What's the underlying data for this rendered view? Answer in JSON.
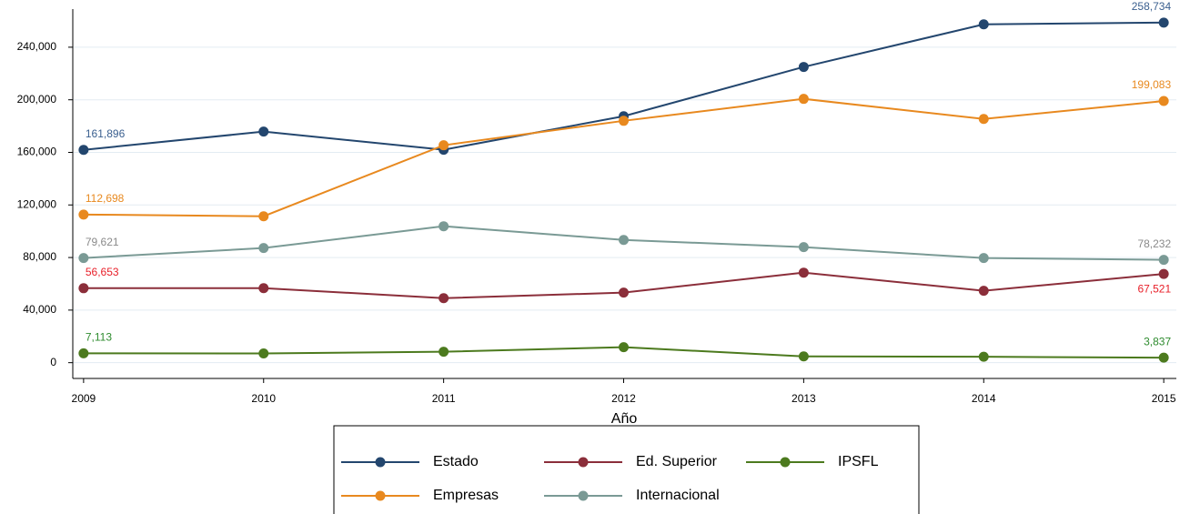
{
  "chart_data": {
    "type": "line",
    "x_label": "Año",
    "x": [
      2009,
      2010,
      2011,
      2012,
      2013,
      2014,
      2015
    ],
    "xlim": [
      2008.94,
      2015.07
    ],
    "xticks": [
      2009,
      2010,
      2011,
      2012,
      2013,
      2014,
      2015
    ],
    "ylim": [
      -12000,
      269000
    ],
    "yticks": [
      0,
      {
        "value": 40000,
        "label": "40,000"
      },
      {
        "value": 80000,
        "label": "80,000"
      },
      {
        "value": 120000,
        "label": "120,000"
      },
      {
        "value": 160000,
        "label": "160,000"
      },
      {
        "value": 200000,
        "label": "200,000"
      },
      {
        "value": 240000,
        "label": "240,000"
      }
    ],
    "grid": true,
    "legend": "bottom",
    "series": [
      {
        "name": "Estado",
        "color": "#23466e",
        "label_color": "#3a5f8f",
        "values": [
          161896,
          175800,
          162000,
          187500,
          225000,
          257400,
          258734
        ],
        "value_labels": [
          "161,896",
          null,
          null,
          null,
          null,
          null,
          "258,734"
        ]
      },
      {
        "name": "Empresas",
        "color": "#e8891f",
        "label_color": "#e8891f",
        "values": [
          112698,
          111400,
          165400,
          184000,
          200700,
          185400,
          199083
        ],
        "value_labels": [
          "112,698",
          null,
          null,
          null,
          null,
          null,
          "199,083"
        ]
      },
      {
        "name": "Ed. Superior",
        "color": "#8b2e3a",
        "label_color": "#e8202a",
        "values": [
          56653,
          56700,
          49100,
          53300,
          68500,
          54700,
          67521
        ],
        "value_labels": [
          "56,653",
          null,
          null,
          null,
          null,
          null,
          "67,521"
        ]
      },
      {
        "name": "Internacional",
        "color": "#7a9a95",
        "label_color": "#8a8a8a",
        "values": [
          79621,
          87200,
          103800,
          93400,
          87900,
          79600,
          78232
        ],
        "value_labels": [
          "79,621",
          null,
          null,
          null,
          null,
          null,
          "78,232"
        ]
      },
      {
        "name": "IPSFL",
        "color": "#4c7a1e",
        "label_color": "#2e8b2e",
        "values": [
          7113,
          7000,
          8300,
          11800,
          4800,
          4500,
          3837
        ],
        "value_labels": [
          "7,113",
          null,
          null,
          null,
          null,
          null,
          "3,837"
        ]
      }
    ]
  }
}
